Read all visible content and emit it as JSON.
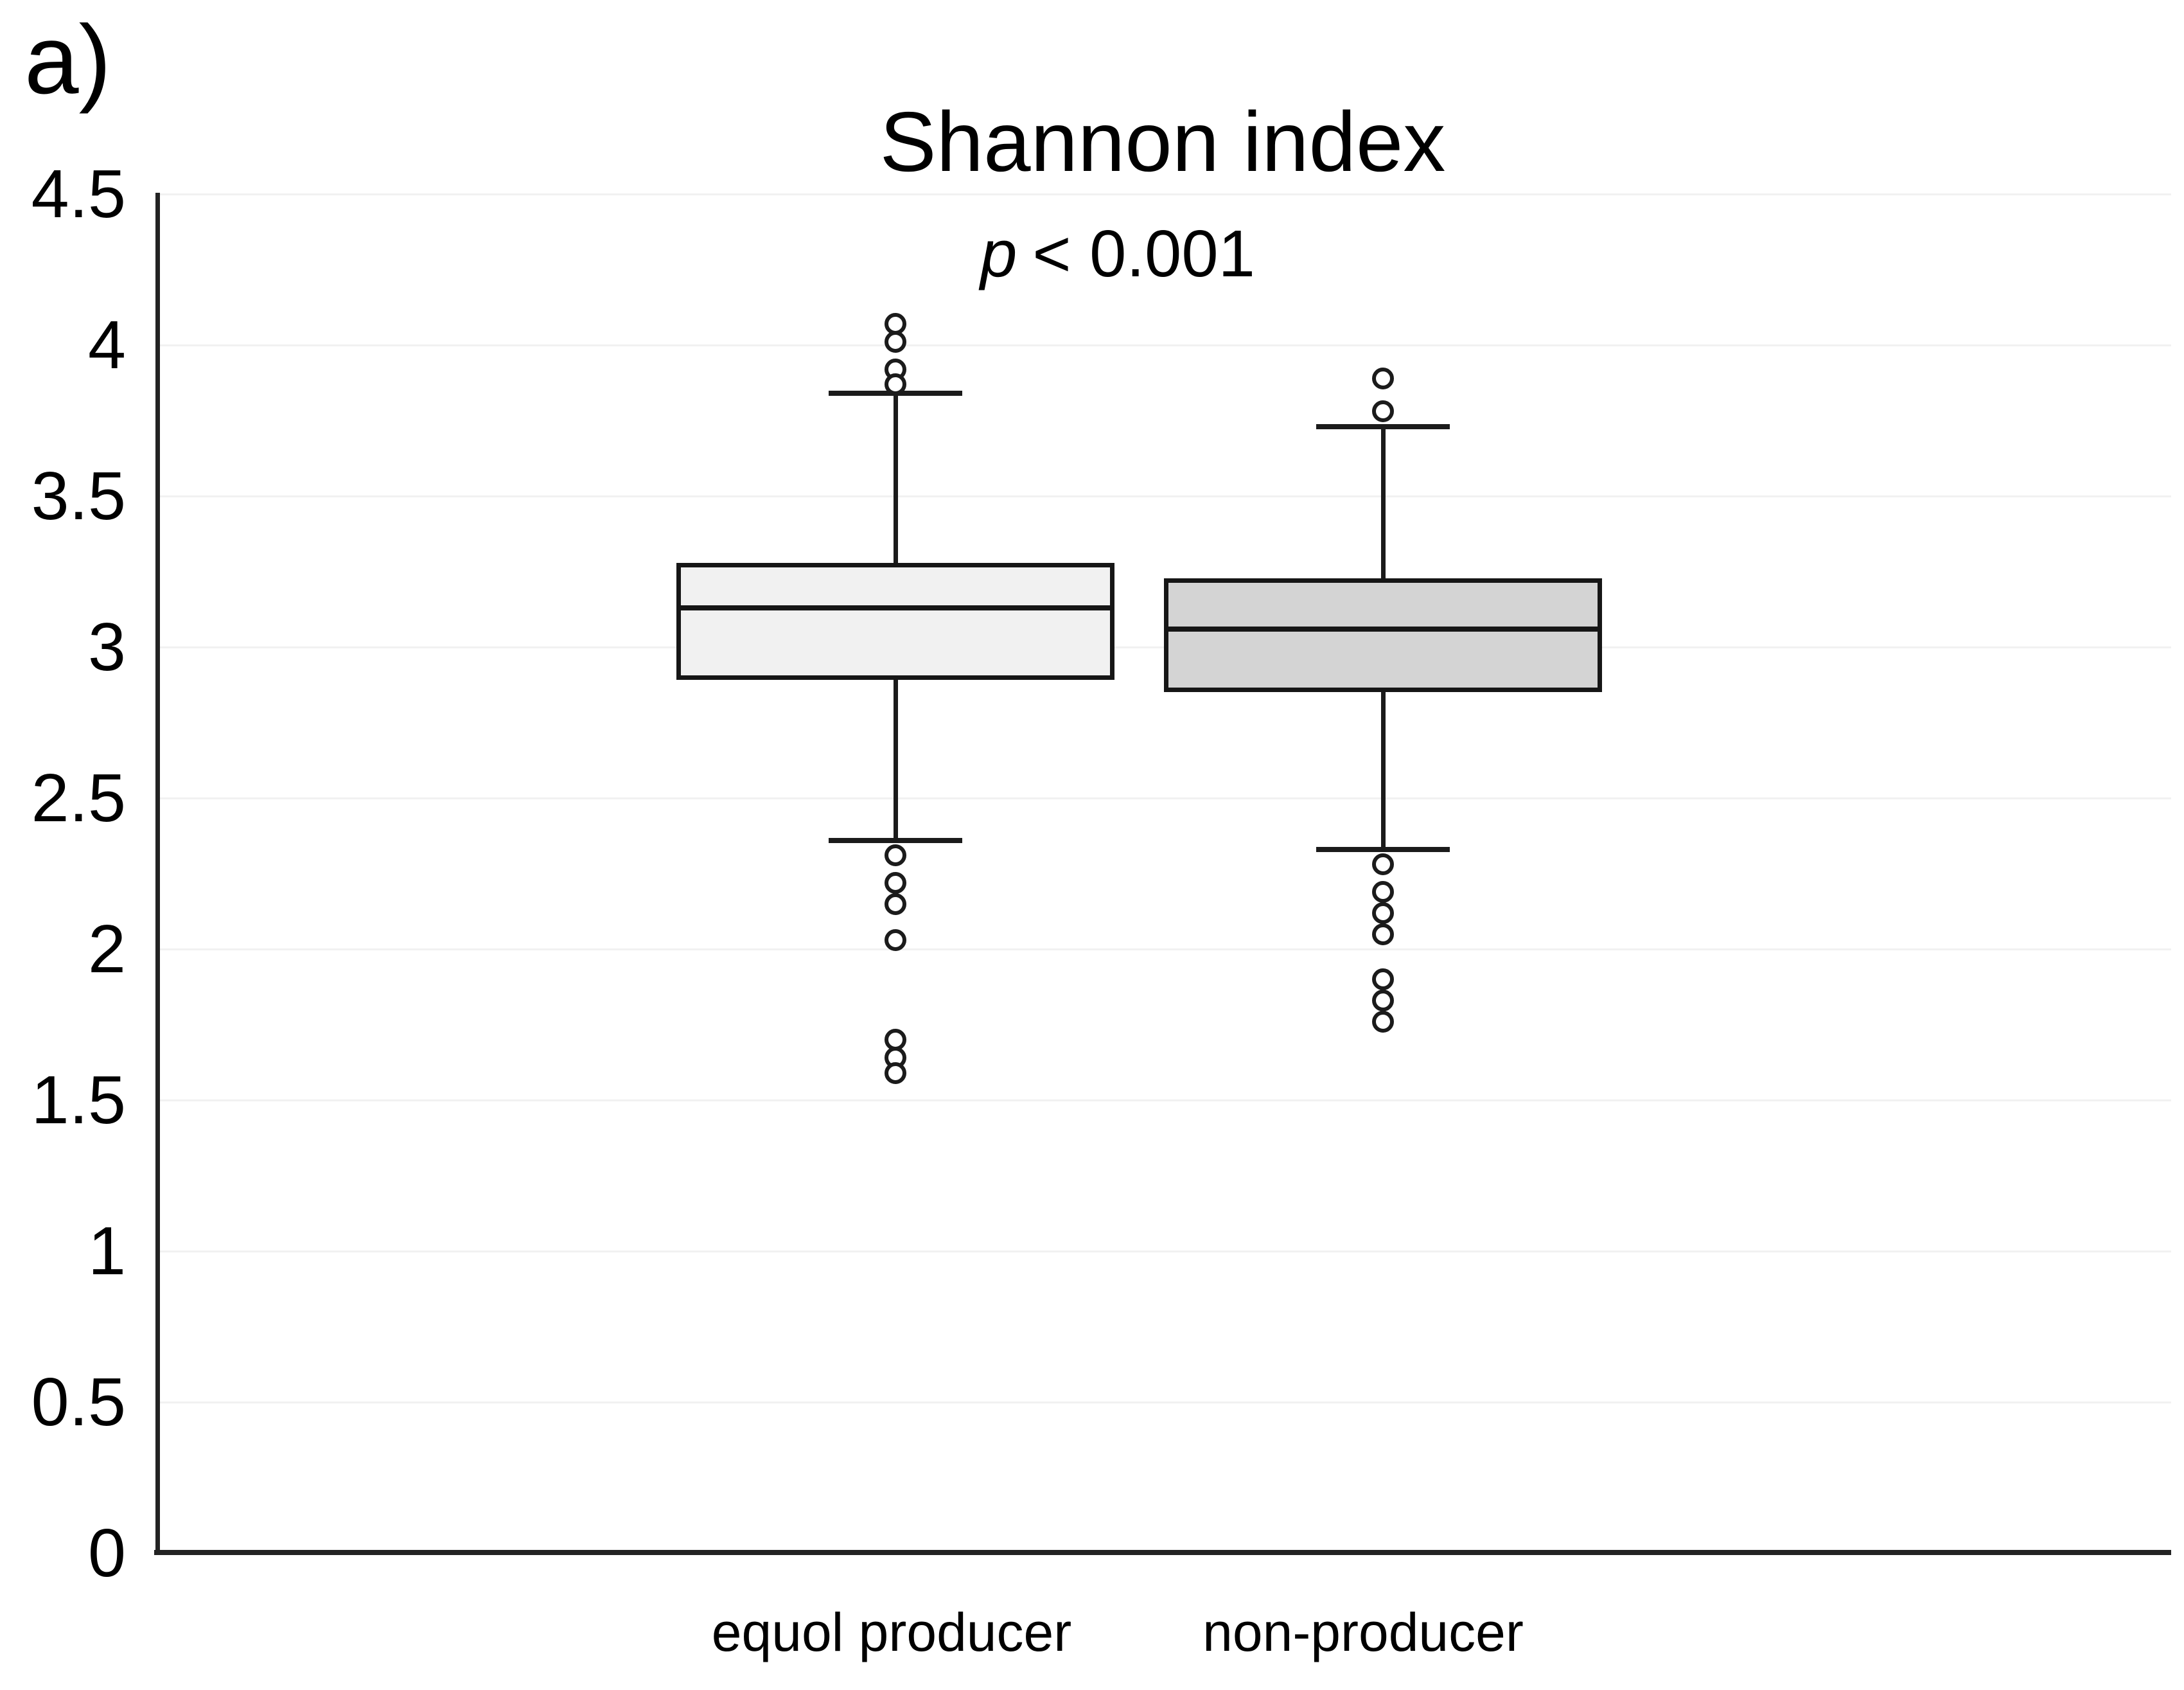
{
  "panel_label": "a)",
  "title": "Shannon index",
  "subtitle": {
    "symbol": "p",
    "comparison": "< 0.001"
  },
  "colors": {
    "axis": "#232323",
    "gridline": "#f1f1f1",
    "box_border": "#161616",
    "equol_producer_fill": "#f1f1f1",
    "non_producer_fill": "#d4d4d4",
    "outlier_fill": "#ffffff"
  },
  "chart_data": {
    "type": "boxplot",
    "title": "Shannon index",
    "annotation": "p < 0.001",
    "ylabel": "",
    "xlabel": "",
    "ylim": [
      0,
      4.5
    ],
    "yticks": [
      4.5,
      4,
      3.5,
      3,
      2.5,
      2,
      1.5,
      1,
      0.5,
      0
    ],
    "ytick_labels": [
      "4.5",
      "4",
      "3.5",
      "3",
      "2.5",
      "2",
      "1.5",
      "1",
      "0.5",
      "0"
    ],
    "grid": true,
    "categories": [
      "equol producer",
      "non-producer"
    ],
    "series": [
      {
        "name": "equol producer",
        "q1": 2.9,
        "median": 3.13,
        "q3": 3.27,
        "whisker_low": 2.36,
        "whisker_high": 3.84,
        "outliers_high": [
          4.07,
          4.01,
          3.92,
          3.87
        ],
        "outliers_low": [
          2.31,
          2.22,
          2.15,
          2.03,
          1.7,
          1.64,
          1.59
        ],
        "fill": "#f1f1f1"
      },
      {
        "name": "non-producer",
        "q1": 2.86,
        "median": 3.06,
        "q3": 3.22,
        "whisker_low": 2.33,
        "whisker_high": 3.73,
        "outliers_high": [
          3.89,
          3.78
        ],
        "outliers_low": [
          2.28,
          2.19,
          2.12,
          2.05,
          1.9,
          1.83,
          1.76
        ],
        "fill": "#d4d4d4"
      }
    ]
  }
}
